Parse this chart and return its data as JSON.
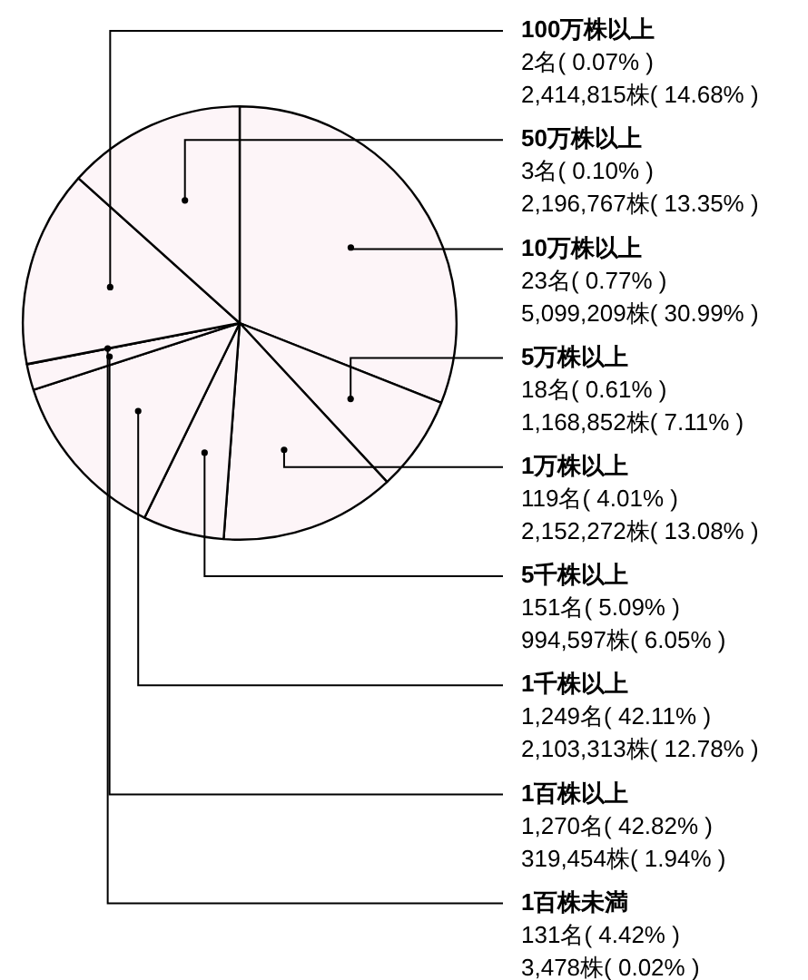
{
  "chart_data": {
    "type": "pie",
    "categories": [
      "100万株以上",
      "50万株以上",
      "10万株以上",
      "5万株以上",
      "1万株以上",
      "5千株以上",
      "1千株以上",
      "1百株以上",
      "1百株未満"
    ],
    "values": [
      14.68,
      13.35,
      30.99,
      7.11,
      13.08,
      6.05,
      12.78,
      1.94,
      0.02
    ],
    "colors": [
      "#fdf5f8",
      "#fdf5f8",
      "#fdf5f8",
      "#fdf5f8",
      "#fdf5f8",
      "#fdf5f8",
      "#fdf5f8",
      "#fdf5f8",
      "#fdf5f8"
    ],
    "value_labels": [
      "2名( 0.07% )\n2,414,815株( 14.68% )",
      "3名( 0.10% )\n2,196,767株( 13.35% )",
      "23名( 0.77% )\n5,099,209株( 30.99% )",
      "18名( 0.61% )\n1,168,852株( 7.11% )",
      "119名( 4.01% )\n2,152,272株( 13.08% )",
      "151名( 5.09% )\n994,597株( 6.05% )",
      "1,249名( 42.11% )\n2,103,313株( 12.78% )",
      "1,270名( 42.82% )\n319,454株( 1.94% )",
      "131名( 4.42% )\n3,478株( 0.02% )"
    ],
    "legend": false
  }
}
